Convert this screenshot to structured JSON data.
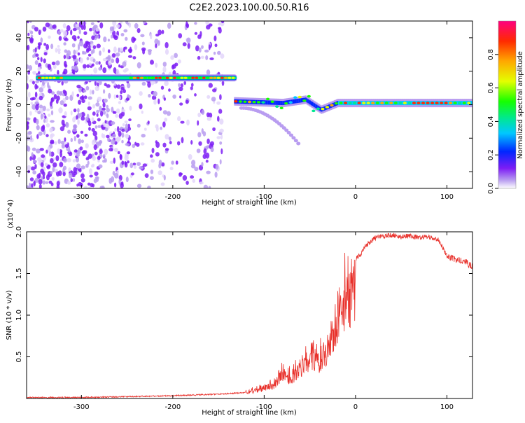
{
  "title": "C2E2.2023.100.00.50.R16",
  "chart_data": [
    {
      "type": "heatmap",
      "xlabel": "Height of straight line (km)",
      "ylabel": "Frequency (Hz)",
      "xlim": [
        -360,
        128
      ],
      "ylim": [
        -50,
        50
      ],
      "xticks": [
        -300,
        -200,
        -100,
        0,
        100
      ],
      "yticks": [
        -40,
        -20,
        0,
        20,
        40
      ],
      "colorbar": {
        "label": "Normalized spectral amplitude",
        "range": [
          0.0,
          1.0
        ],
        "ticks": [
          "0.0",
          "0.2",
          "0.4",
          "0.6",
          "0.8"
        ],
        "colors": [
          "#ffffff",
          "#b89cf0",
          "#7d1df5",
          "#0026ff",
          "#00c8ff",
          "#00e890",
          "#16ff00",
          "#e4ff00",
          "#ffa800",
          "#ff2a00",
          "#ff0080"
        ]
      },
      "features": [
        {
          "name": "Doppler line",
          "x": [
            -350,
            -130
          ],
          "freq": 16,
          "amplitude": 0.8
        },
        {
          "name": "Main line",
          "x": [
            -133,
            128
          ],
          "freq": [
            2,
            1,
            3,
            -3,
            1,
            1
          ],
          "x_points": [
            -133,
            -80,
            -55,
            -38,
            -20,
            128
          ],
          "amplitude": 0.9
        },
        {
          "name": "Secondary branch",
          "x": [
            -125,
            -60
          ],
          "freq": [
            -2,
            -25
          ],
          "amplitude": 0.3
        },
        {
          "name": "Noise region",
          "x": [
            -360,
            -145
          ],
          "freq": [
            -50,
            50
          ],
          "amplitude": 0.25
        }
      ]
    },
    {
      "type": "line",
      "xlabel": "Height of straight line (km)",
      "ylabel": "SNR (10 * v/v)",
      "y_multiplier": "(x10^4)",
      "xlim": [
        -360,
        128
      ],
      "ylim": [
        0,
        2.0
      ],
      "xticks": [
        -300,
        -200,
        -100,
        0,
        100
      ],
      "yticks": [
        0.5,
        1.0,
        1.5,
        2.0
      ],
      "ytick_labels": [
        "0.5",
        "1.0",
        "1.5",
        "2.0"
      ],
      "color": "#e8302a",
      "series": [
        {
          "x": [
            -360,
            -300,
            -250,
            -200,
            -150,
            -120,
            -110,
            -100,
            -90,
            -80,
            -70,
            -60,
            -50,
            -40,
            -30,
            -25,
            -20,
            -15,
            -10,
            -5,
            0,
            5,
            10,
            20,
            30,
            40,
            50,
            60,
            70,
            80,
            90,
            100,
            110,
            120,
            128
          ],
          "y": [
            0.02,
            0.02,
            0.03,
            0.04,
            0.06,
            0.08,
            0.12,
            0.15,
            0.2,
            0.35,
            0.3,
            0.45,
            0.55,
            0.55,
            0.75,
            0.9,
            1.1,
            1.3,
            1.45,
            1.55,
            1.7,
            1.75,
            1.85,
            1.95,
            1.98,
            1.99,
            1.97,
            1.98,
            1.96,
            1.97,
            1.94,
            1.75,
            1.7,
            1.68,
            1.62
          ]
        }
      ]
    }
  ]
}
